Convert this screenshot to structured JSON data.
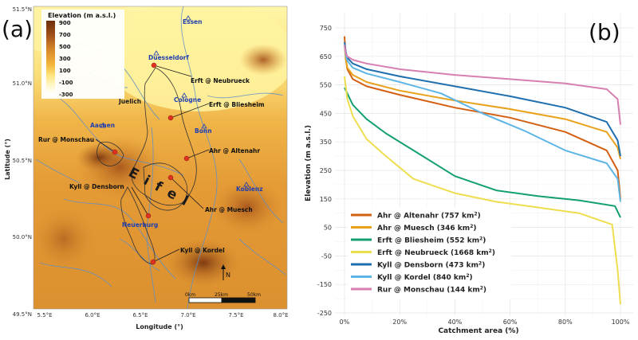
{
  "panels": {
    "a": "(a)",
    "b": "(b)"
  },
  "map": {
    "legend_title": "Elevation (m a.s.l.)",
    "legend_ticks": [
      "900",
      "700",
      "500",
      "300",
      "100",
      "-100",
      "-300"
    ],
    "y_ticks": [
      "51.5°N",
      "51.0°N",
      "50.5°N",
      "50.0°N",
      "49.5°N"
    ],
    "x_ticks": [
      "5.5°E",
      "6.0°E",
      "6.5°E",
      "7.0°E",
      "7.5°E",
      "8.0°E"
    ],
    "xlabel": "Longitude (°)",
    "ylabel": "Latitude (°)",
    "region": "E i f e l",
    "cities": [
      "Essen",
      "Duesseldorf",
      "Cologne",
      "Juelich",
      "Aachen",
      "Bonn",
      "Koblenz",
      "Neuerburg"
    ],
    "gauges": [
      "Erft @ Neubrueck",
      "Erft @ Bliesheim",
      "Rur @ Monschau",
      "Ahr @ Altenahr",
      "Kyll @ Densborn",
      "Ahr @ Muesch",
      "Kyll @ Kordel"
    ],
    "scale_labels": [
      "0km",
      "25km",
      "50km"
    ],
    "north": "N",
    "colors": {
      "high": "#6e2d0a",
      "mid": "#d9892a",
      "low": "#ffe680",
      "lowest": "#ffffff",
      "river": "#4a7dbf",
      "gauge": "#e03020",
      "city_text": "#1f3fb0"
    }
  },
  "chart_data": {
    "type": "line",
    "xlabel": "Catchment area (%)",
    "ylabel": "Elevation (m a.s.l.)",
    "xlim": [
      0,
      100
    ],
    "ylim": [
      -250,
      750
    ],
    "x_ticks": [
      "0%",
      "20%",
      "40%",
      "60%",
      "80%",
      "100%"
    ],
    "y_ticks": [
      "750",
      "650",
      "550",
      "450",
      "350",
      "250",
      "150",
      "50",
      "-50",
      "-150",
      "-250"
    ],
    "grid": true,
    "legend_position": "bottom-left",
    "series": [
      {
        "name": "Ahr @ Altenahr (757 km2)",
        "color": "#d35f12",
        "x": [
          0,
          0.5,
          1,
          3,
          8,
          20,
          40,
          60,
          80,
          95,
          99,
          100
        ],
        "y": [
          720,
          640,
          605,
          570,
          545,
          515,
          470,
          435,
          385,
          320,
          250,
          150
        ]
      },
      {
        "name": "Ahr @ Muesch (346 km2)",
        "color": "#e8a11a",
        "x": [
          0,
          0.5,
          1,
          3,
          8,
          20,
          40,
          60,
          80,
          95,
          99,
          100
        ],
        "y": [
          690,
          640,
          610,
          585,
          560,
          530,
          495,
          465,
          430,
          385,
          330,
          290
        ]
      },
      {
        "name": "Erft @ Bliesheim (552 km2)",
        "color": "#13a06e",
        "x": [
          0,
          1,
          3,
          8,
          15,
          25,
          40,
          55,
          70,
          85,
          98,
          100
        ],
        "y": [
          540,
          520,
          480,
          430,
          380,
          320,
          230,
          180,
          160,
          145,
          125,
          85
        ]
      },
      {
        "name": "Erft @ Neubrueck (1668 km2)",
        "color": "#eede4f",
        "x": [
          0,
          1,
          3,
          8,
          15,
          25,
          40,
          55,
          70,
          85,
          97,
          99,
          100
        ],
        "y": [
          580,
          500,
          440,
          360,
          300,
          220,
          170,
          140,
          120,
          100,
          60,
          -100,
          -220
        ]
      },
      {
        "name": "Kyll @ Densborn (473 km2)",
        "color": "#1f6faf",
        "x": [
          0,
          0.5,
          1,
          3,
          8,
          20,
          40,
          60,
          80,
          95,
          99,
          100
        ],
        "y": [
          700,
          665,
          645,
          625,
          605,
          580,
          545,
          510,
          470,
          420,
          355,
          300
        ]
      },
      {
        "name": "Kyll @ Kordel (840 km2)",
        "color": "#5db5e5",
        "x": [
          0,
          0.5,
          1,
          3,
          8,
          20,
          35,
          50,
          65,
          80,
          95,
          99,
          100
        ],
        "y": [
          690,
          655,
          635,
          610,
          590,
          560,
          520,
          450,
          390,
          320,
          275,
          220,
          140
        ]
      },
      {
        "name": "Rur @ Monschau (144 km2)",
        "color": "#d67fb0",
        "x": [
          0,
          0.5,
          1,
          3,
          8,
          20,
          40,
          60,
          80,
          95,
          99,
          100
        ],
        "y": [
          690,
          660,
          650,
          638,
          625,
          605,
          585,
          570,
          555,
          535,
          500,
          410
        ]
      }
    ]
  }
}
